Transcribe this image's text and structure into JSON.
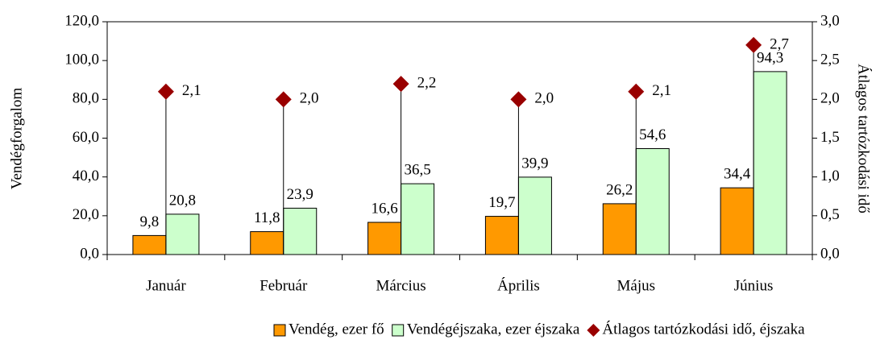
{
  "chart_data": {
    "type": "bar",
    "categories": [
      "Január",
      "Február",
      "Március",
      "Április",
      "Május",
      "Június"
    ],
    "series": [
      {
        "name": "Vendég, ezer fő",
        "color": "#ff9900",
        "values": [
          9.8,
          11.8,
          16.6,
          19.7,
          26.2,
          34.4
        ],
        "value_labels": [
          "9,8",
          "11,8",
          "16,6",
          "19,7",
          "26,2",
          "34,4"
        ]
      },
      {
        "name": "Vendégéjszaka, ezer éjszaka",
        "color": "#ccffcc",
        "values": [
          20.8,
          23.9,
          36.5,
          39.9,
          54.6,
          94.3
        ],
        "value_labels": [
          "20,8",
          "23,9",
          "36,5",
          "39,9",
          "54,6",
          "94,3"
        ]
      },
      {
        "name": "Átlagos tartózkodási idő, éjszaka",
        "type": "marker",
        "axis": "y2",
        "color": "#990000",
        "values": [
          2.1,
          2.0,
          2.2,
          2.0,
          2.1,
          2.7
        ],
        "value_labels": [
          "2,1",
          "2,0",
          "2,2",
          "2,0",
          "2,1",
          "2,7"
        ]
      }
    ],
    "ylabel": "Vendégforgalom",
    "y2label": "Átlagos tartózkodási idő",
    "ylim": [
      0,
      120
    ],
    "yticks": [
      {
        "value": 0,
        "label": "0,0"
      },
      {
        "value": 20,
        "label": "20,0"
      },
      {
        "value": 40,
        "label": "40,0"
      },
      {
        "value": 60,
        "label": "60,0"
      },
      {
        "value": 80,
        "label": "80,0"
      },
      {
        "value": 100,
        "label": "100,0"
      },
      {
        "value": 120,
        "label": "120,0"
      }
    ],
    "y2lim": [
      0,
      3
    ],
    "y2ticks": [
      {
        "value": 0,
        "label": "0,0"
      },
      {
        "value": 0.5,
        "label": "0,5"
      },
      {
        "value": 1,
        "label": "1,0"
      },
      {
        "value": 1.5,
        "label": "1,5"
      },
      {
        "value": 2,
        "label": "2,0"
      },
      {
        "value": 2.5,
        "label": "2,5"
      },
      {
        "value": 3,
        "label": "3,0"
      }
    ],
    "legend": "bottom"
  }
}
